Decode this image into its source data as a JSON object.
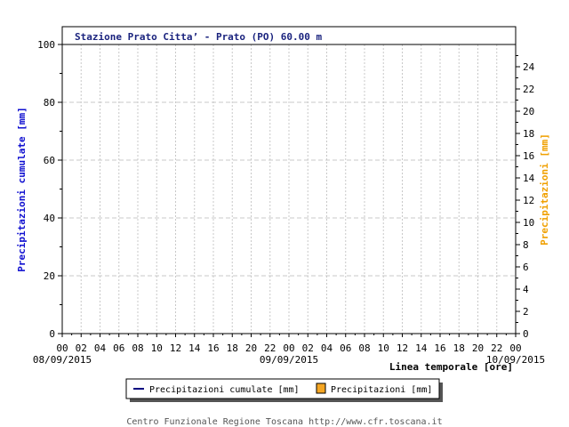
{
  "chart_data": {
    "type": "bar",
    "title": "Stazione Prato Citta’ - Prato (PO) 60.00 m",
    "x_label": "Linea temporale [ore]",
    "y_left_label": "Precipitazioni cumulate [mm]",
    "y_right_label": "Precipitazioni [mm]",
    "y_left_range": [
      0,
      100
    ],
    "y_left_ticks": [
      0,
      20,
      40,
      60,
      80,
      100
    ],
    "y_right_range": [
      0,
      26
    ],
    "y_right_ticks": [
      0,
      2,
      4,
      6,
      8,
      10,
      12,
      14,
      16,
      18,
      20,
      22,
      24
    ],
    "x_ticks": [
      "00",
      "02",
      "04",
      "06",
      "08",
      "10",
      "12",
      "14",
      "16",
      "18",
      "20",
      "22",
      "00",
      "02",
      "04",
      "06",
      "08",
      "10",
      "12",
      "14",
      "16",
      "18",
      "20",
      "22",
      "00"
    ],
    "x_dates": [
      "08/09/2015",
      "09/09/2015",
      "10/09/2015"
    ],
    "series": [
      {
        "name": "Precipitazioni cumulate [mm]",
        "type": "line",
        "color": "#000080",
        "values": []
      },
      {
        "name": "Precipitazioni [mm]",
        "type": "bar",
        "color": "#f5a623",
        "values": []
      }
    ],
    "grid": true,
    "legend_position": "bottom"
  },
  "footer": "Centro Funzionale Regione Toscana http://www.cfr.toscana.it"
}
